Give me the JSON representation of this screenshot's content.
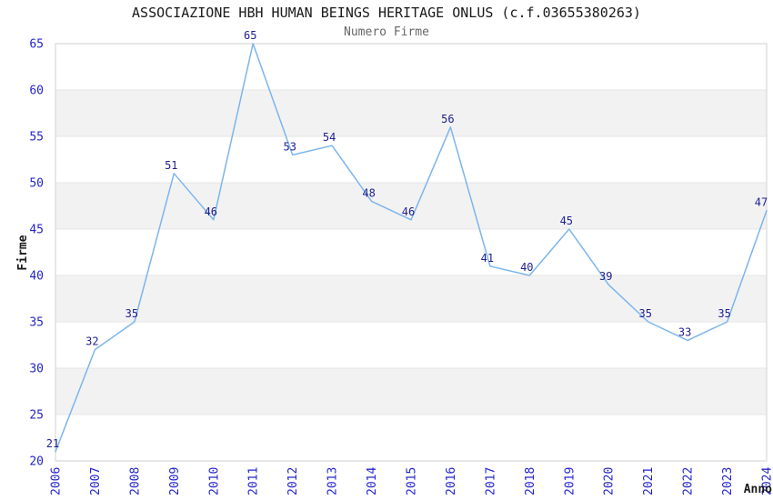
{
  "chart_data": {
    "type": "line",
    "title": "ASSOCIAZIONE HBH HUMAN BEINGS HERITAGE ONLUS (c.f.03655380263)",
    "subtitle": "Numero Firme",
    "xlabel": "Anno",
    "ylabel": "Firme",
    "x": [
      "2006",
      "2007",
      "2008",
      "2009",
      "2010",
      "2011",
      "2012",
      "2013",
      "2014",
      "2015",
      "2016",
      "2017",
      "2018",
      "2019",
      "2020",
      "2021",
      "2022",
      "2023",
      "2024"
    ],
    "values": [
      21,
      32,
      35,
      51,
      46,
      65,
      53,
      54,
      48,
      46,
      56,
      41,
      40,
      45,
      39,
      35,
      33,
      35,
      47
    ],
    "ylim": [
      20,
      65
    ],
    "ytick_step": 5,
    "grid": true,
    "legend_position": "none",
    "colors": {
      "line": "#7cb5ec",
      "tick_label": "#2424cc",
      "data_label": "#1f1f8f",
      "band": "#f2f2f2",
      "gridline": "#e6e6e6",
      "border": "#d2d2d2",
      "title": "#1a1a1a",
      "subtitle": "#666666",
      "axis_title": "#1a1a1a"
    }
  }
}
